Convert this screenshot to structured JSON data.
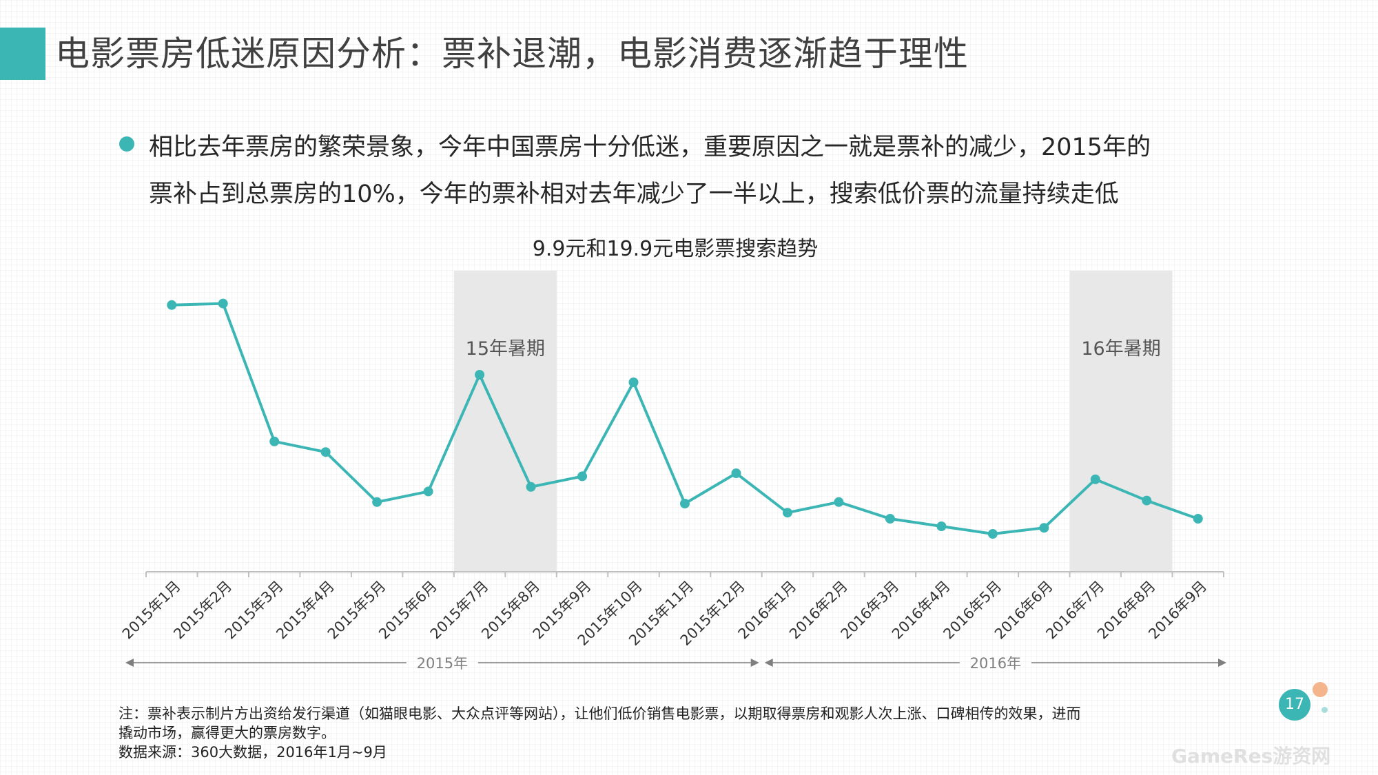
{
  "header": {
    "title": "电影票房低迷原因分析：票补退潮，电影消费逐渐趋于理性"
  },
  "bullet": {
    "line1": "相比去年票房的繁荣景象，今年中国票房十分低迷，重要原因之一就是票补的减少，2015年的",
    "line2": "票补占到总票房的10%，今年的票补相对去年减少了一半以上，搜索低价票的流量持续走低"
  },
  "chart_data": {
    "type": "line",
    "title": "9.9元和19.9元电影票搜索趋势",
    "categories": [
      "2015年1月",
      "2015年2月",
      "2015年3月",
      "2015年4月",
      "2015年5月",
      "2015年6月",
      "2015年7月",
      "2015年8月",
      "2015年9月",
      "2015年10月",
      "2015年11月",
      "2015年12月",
      "2016年1月",
      "2016年2月",
      "2016年3月",
      "2016年4月",
      "2016年5月",
      "2016年6月",
      "2016年7月",
      "2016年8月",
      "2016年9月"
    ],
    "series": [
      {
        "values": [
          88,
          88.5,
          43,
          39.5,
          23,
          26.5,
          65,
          28,
          31.5,
          62.5,
          22.5,
          32.5,
          19.5,
          23,
          17.5,
          15,
          12.5,
          14.5,
          30.5,
          23.5,
          17.5
        ]
      }
    ],
    "ylim": [
      0,
      100
    ],
    "grid": false,
    "line_color": "#3cb6b5",
    "shade_color": "#e8e8e8",
    "highlights": [
      {
        "label": "15年暑期",
        "from_index": 6,
        "to_index": 7
      },
      {
        "label": "16年暑期",
        "from_index": 18,
        "to_index": 19
      }
    ],
    "year_groups": [
      {
        "label": "2015年",
        "from_index": 0,
        "to_index": 11
      },
      {
        "label": "2016年",
        "from_index": 12,
        "to_index": 20
      }
    ]
  },
  "notes": {
    "line1": "注：票补表示制片方出资给发行渠道（如猫眼电影、大众点评等网站），让他们低价销售电影票，以期取得票房和观影人次上涨、口碑相传的效果，进而",
    "line2": "撬动市场，赢得更大的票房数字。",
    "line3": "数据来源：360大数据，2016年1月~9月"
  },
  "page_number": "17",
  "watermark": "GameRes游资网"
}
